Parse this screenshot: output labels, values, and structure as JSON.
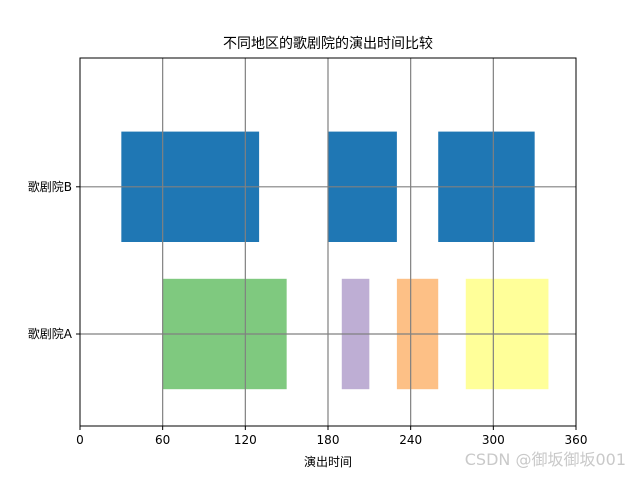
{
  "chart_data": {
    "type": "broken_barh",
    "title": "不同地区的歌剧院的演出时间比较",
    "xlabel": "演出时间",
    "ylabel": "",
    "xlim": [
      0,
      360
    ],
    "x_ticks": [
      0,
      60,
      120,
      180,
      240,
      300,
      360
    ],
    "y_categories": [
      "歌剧院A",
      "歌剧院B"
    ],
    "grid": true,
    "grid_color": "#808080",
    "series": [
      {
        "category": "歌剧院B",
        "y_range": [
          0.5,
          0.8
        ],
        "segments": [
          {
            "start": 30,
            "width": 100,
            "color": "#1f77b4"
          },
          {
            "start": 180,
            "width": 50,
            "color": "#1f77b4"
          },
          {
            "start": 260,
            "width": 70,
            "color": "#1f77b4"
          }
        ]
      },
      {
        "category": "歌剧院A",
        "y_range": [
          0.1,
          0.4
        ],
        "segments": [
          {
            "start": 60,
            "width": 90,
            "color": "#7fc97f"
          },
          {
            "start": 190,
            "width": 20,
            "color": "#beaed4"
          },
          {
            "start": 230,
            "width": 30,
            "color": "#fdc086"
          },
          {
            "start": 280,
            "width": 60,
            "color": "#ffff99"
          }
        ]
      }
    ]
  },
  "watermark": "CSDN @御坂御坂001"
}
